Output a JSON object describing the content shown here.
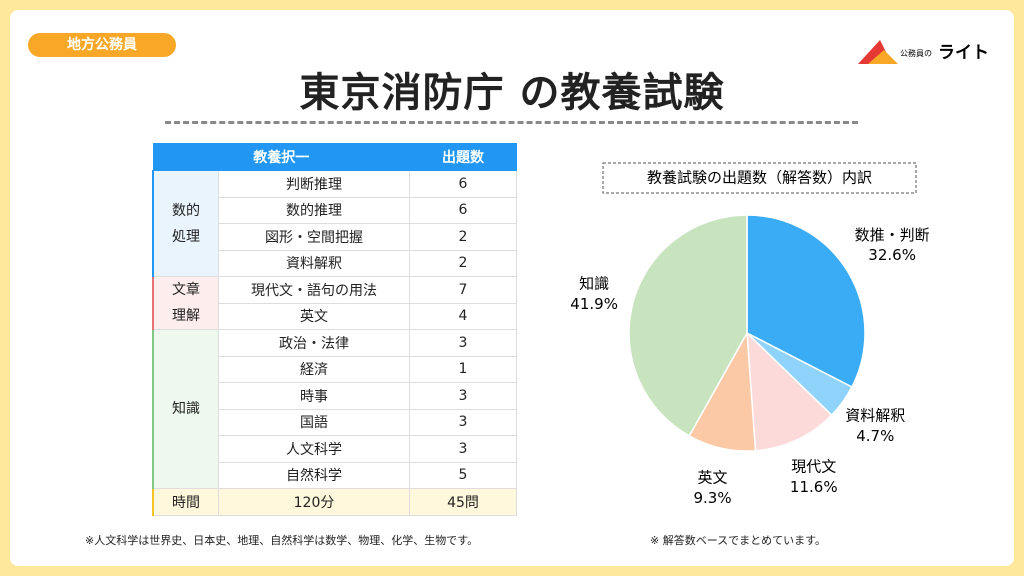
{
  "badge": "地方公務員",
  "title": "東京消防庁 の教養試験",
  "logo": {
    "small": "公務員の",
    "big": "ライト"
  },
  "table": {
    "header": [
      "教養択一",
      "出題数"
    ],
    "groups": [
      {
        "label": "数的処理",
        "rows": [
          [
            "判断推理",
            "6"
          ],
          [
            "数的推理",
            "6"
          ],
          [
            "図形・空間把握",
            "2"
          ],
          [
            "資料解釈",
            "2"
          ]
        ]
      },
      {
        "label": "文章理解",
        "rows": [
          [
            "現代文・語句の用法",
            "7"
          ],
          [
            "英文",
            "4"
          ]
        ]
      },
      {
        "label": "知識",
        "rows": [
          [
            "政治・法律",
            "3"
          ],
          [
            "経済",
            "1"
          ],
          [
            "時事",
            "3"
          ],
          [
            "国語",
            "3"
          ],
          [
            "人文科学",
            "3"
          ],
          [
            "自然科学",
            "5"
          ]
        ]
      }
    ],
    "footer": [
      "時間",
      "120分",
      "45問"
    ]
  },
  "chart_data": {
    "type": "pie",
    "title": "教養試験の出題数（解答数）内訳",
    "categories": [
      "数推・判断",
      "資料解釈",
      "現代文",
      "英文",
      "知識"
    ],
    "values": [
      32.6,
      4.7,
      11.6,
      9.3,
      41.9
    ],
    "value_labels": [
      "32.6%",
      "4.7%",
      "11.6%",
      "9.3%",
      "41.9%"
    ],
    "colors": [
      "#3aabf5",
      "#8fd3fb",
      "#fddada",
      "#fcc9a6",
      "#c8e4bf"
    ]
  },
  "notes": [
    "※人文科学は世界史、日本史、地理、自然科学は数学、物理、化学、生物です。",
    "※ 解答数ベースでまとめています。"
  ]
}
